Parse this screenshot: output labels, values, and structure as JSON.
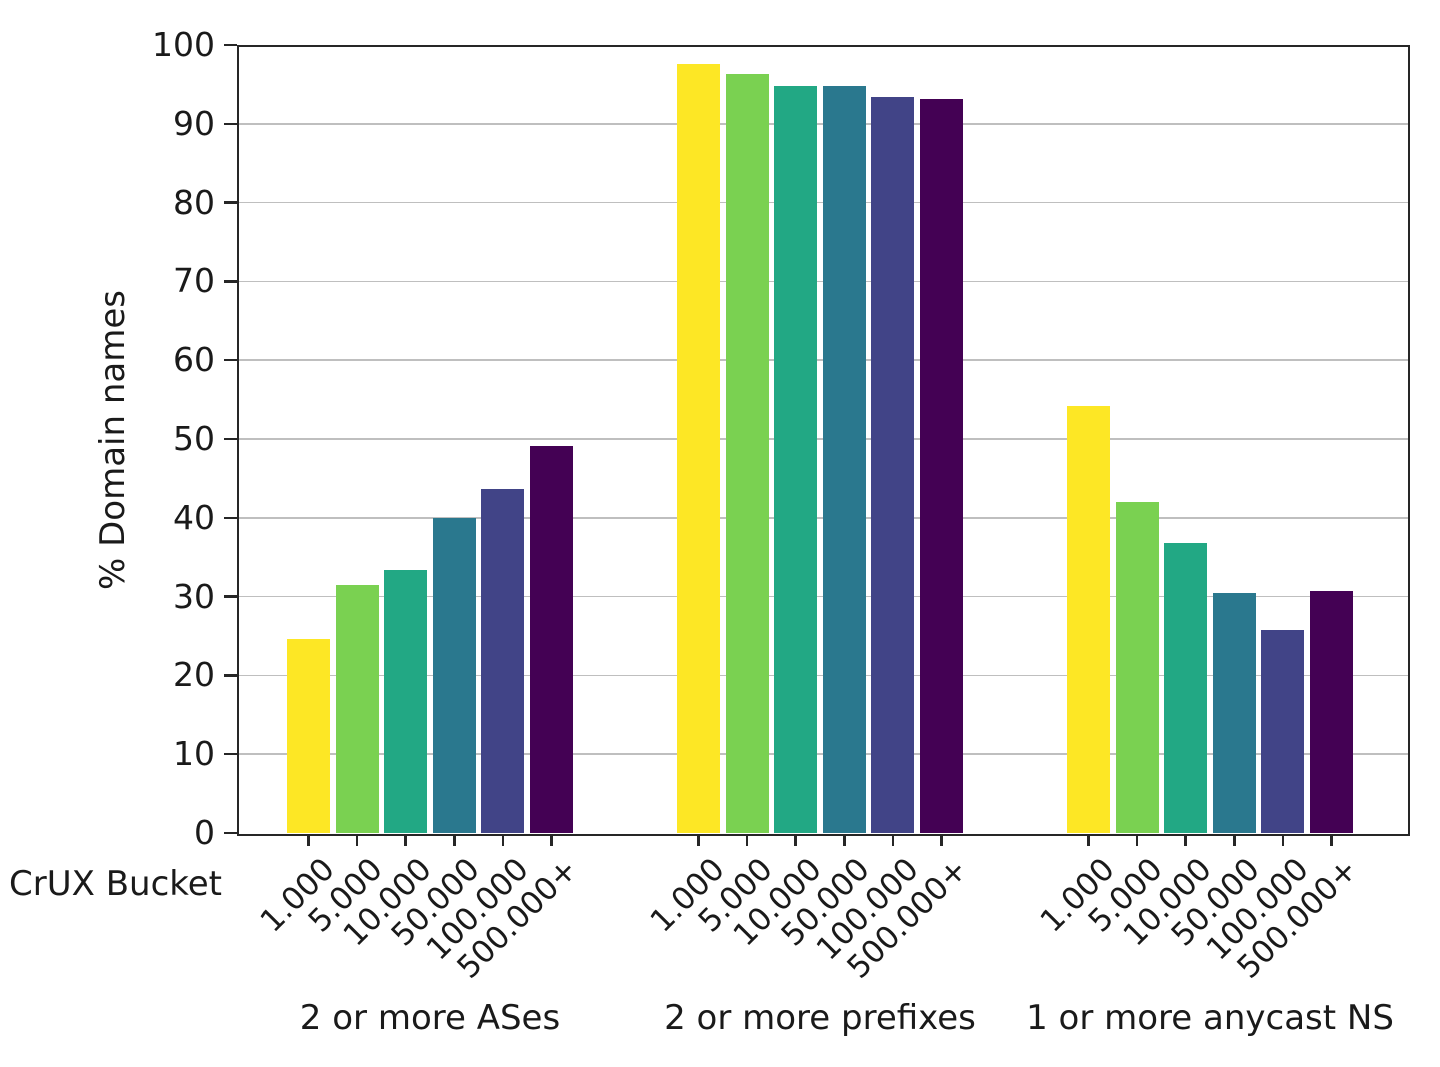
{
  "chart_data": {
    "type": "bar",
    "title": "",
    "xlabel": "CrUX Bucket",
    "ylabel": "% Domain names",
    "ylim": [
      0,
      100
    ],
    "yticks": [
      0,
      10,
      20,
      30,
      40,
      50,
      60,
      70,
      80,
      90,
      100
    ],
    "grid": "horizontal",
    "legend_position": "none",
    "categories": [
      "1.000",
      "5.000",
      "10.000",
      "50.000",
      "100.000",
      "500.000+"
    ],
    "palette": [
      "#fde725",
      "#7ad151",
      "#22a884",
      "#2a788e",
      "#414487",
      "#440154"
    ],
    "series": [
      {
        "name": "2 or more ASes",
        "values": [
          24.6,
          31.5,
          33.4,
          40.0,
          43.6,
          49.1
        ]
      },
      {
        "name": "2 or more prefixes",
        "values": [
          97.6,
          96.3,
          94.8,
          94.8,
          93.4,
          93.2
        ]
      },
      {
        "name": "1 or more anycast NS",
        "values": [
          54.2,
          42.0,
          36.8,
          30.4,
          25.8,
          30.7
        ]
      }
    ]
  }
}
